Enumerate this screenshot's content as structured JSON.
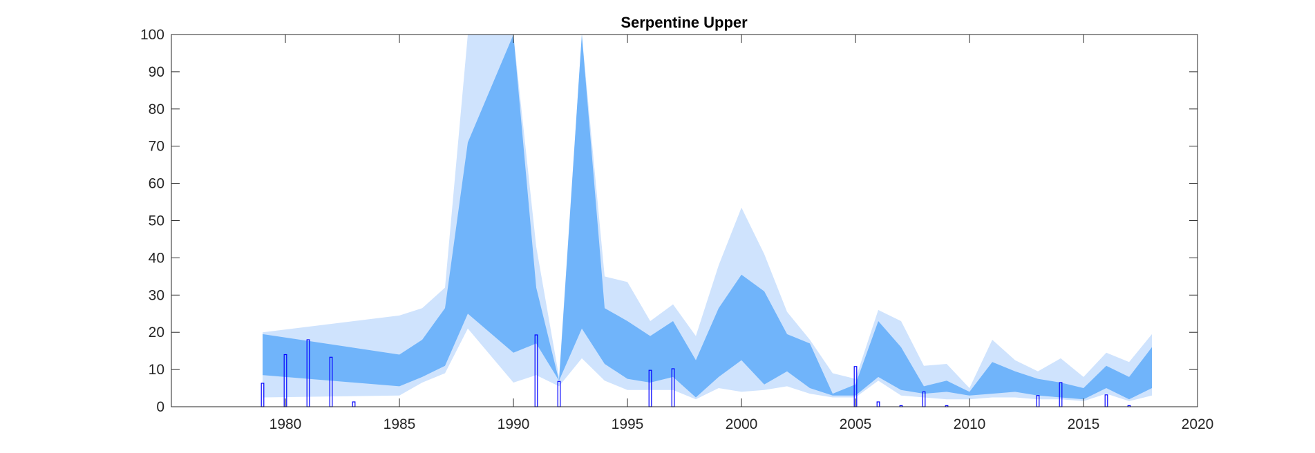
{
  "chart_data": {
    "type": "area",
    "title": "Serpentine Upper",
    "xlabel": "",
    "ylabel": "",
    "xlim": [
      1975,
      2020
    ],
    "ylim": [
      0,
      100
    ],
    "xticks": [
      1980,
      1985,
      1990,
      1995,
      2000,
      2005,
      2010,
      2015,
      2020
    ],
    "yticks": [
      0,
      10,
      20,
      30,
      40,
      50,
      60,
      70,
      80,
      90,
      100
    ],
    "grid": false,
    "legend": "none",
    "colors": {
      "outer_band": "#cfe3fd",
      "inner_band": "#70b4fa",
      "bars": "#0000ff",
      "axes": "#262626"
    },
    "bands": [
      {
        "role": "outer",
        "segments": [
          {
            "x": [
              1979,
              1985,
              1986,
              1987,
              1988,
              1990,
              1991,
              1992
            ],
            "lower": [
              2.5,
              3,
              6.5,
              9,
              21,
              6.5,
              8.5,
              5.5
            ],
            "upper": [
              20,
              24.5,
              26.5,
              32,
              100,
              100,
              43,
              8
            ]
          },
          {
            "x": [
              1992,
              1993,
              1994,
              1995,
              1996,
              1997,
              1998,
              1999,
              2000,
              2001,
              2002,
              2003,
              2004,
              2005,
              2006,
              2007,
              2008,
              2009,
              2010,
              2011,
              2012,
              2013,
              2014,
              2015,
              2016,
              2017,
              2018
            ],
            "lower": [
              5.5,
              13,
              7,
              4.5,
              4.5,
              4.5,
              2,
              5,
              4,
              4.5,
              5.5,
              3.5,
              2.5,
              2.5,
              7,
              3,
              2.5,
              2,
              2,
              2.5,
              2.5,
              2,
              2,
              1.5,
              3.5,
              1.5,
              3
            ],
            "upper": [
              8,
              100,
              35,
              33.5,
              23,
              27.5,
              19,
              38,
              53.5,
              41,
              25.5,
              18,
              9,
              7.5,
              26,
              23,
              11,
              11.5,
              5,
              18,
              12.5,
              9.5,
              13,
              8,
              14.5,
              12,
              19.5
            ]
          }
        ]
      },
      {
        "role": "inner",
        "segments": [
          {
            "x": [
              1979,
              1985,
              1986,
              1987,
              1988,
              1990,
              1991,
              1992
            ],
            "lower": [
              8.5,
              5.5,
              8,
              11,
              25,
              14.5,
              17,
              7
            ],
            "upper": [
              19.5,
              14,
              18,
              26.5,
              71,
              100,
              32,
              7
            ]
          },
          {
            "x": [
              1992,
              1993,
              1994,
              1995,
              1996,
              1997,
              1998,
              1999,
              2000,
              2001,
              2002,
              2003,
              2004,
              2005,
              2006,
              2007,
              2008,
              2009,
              2010,
              2011,
              2012,
              2013,
              2014,
              2015,
              2016,
              2017,
              2018
            ],
            "lower": [
              7,
              21,
              11.5,
              7.5,
              6.5,
              8,
              2.5,
              8,
              12.5,
              6,
              9.5,
              5,
              3,
              3,
              8,
              4.5,
              3.5,
              4,
              3,
              3.5,
              4,
              3,
              2.5,
              2,
              5,
              2,
              5
            ],
            "upper": [
              7,
              100,
              26.5,
              23,
              19,
              23,
              12.5,
              26.5,
              35.5,
              31,
              19.5,
              17,
              3.5,
              6,
              23,
              16,
              5.5,
              7,
              4,
              12,
              9.5,
              7.5,
              6.5,
              5,
              11,
              8,
              16
            ]
          }
        ]
      }
    ],
    "bars": {
      "x": [
        1979,
        1980,
        1981,
        1982,
        1983,
        1991,
        1992,
        1996,
        1997,
        2005,
        2006,
        2007,
        2008,
        2009,
        2013,
        2014,
        2016,
        2017
      ],
      "values": [
        6.3,
        14,
        18,
        13.3,
        1.3,
        19.3,
        6.8,
        9.8,
        10.2,
        10.8,
        1.3,
        0.3,
        4,
        0.3,
        3,
        6.5,
        3.2,
        0.3
      ]
    }
  }
}
